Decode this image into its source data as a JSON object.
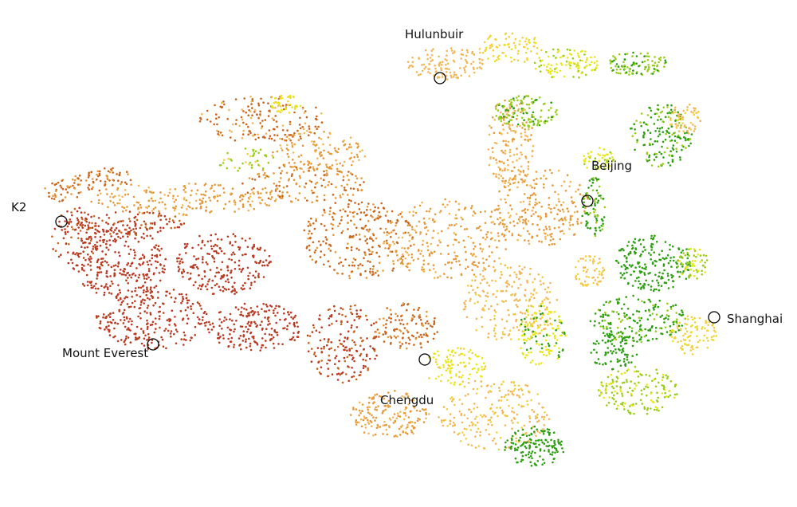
{
  "palette": {
    "high_altitude": "#b83a22",
    "upper_mid": "#c8661f",
    "mid": "#e39a3c",
    "plateau": "#f0b85a",
    "lower_mid": "#f2d040",
    "lowland_yellow": "#e8e818",
    "lowland_lime": "#9acd1a",
    "lowland_green": "#2e9e12"
  },
  "places": [
    {
      "id": "hulunbuir",
      "name": "Hulunbuir",
      "marker_color": "#000000"
    },
    {
      "id": "beijing",
      "name": "Beijing",
      "marker_color": "#000000"
    },
    {
      "id": "k2",
      "name": "K2",
      "marker_color": "#000000"
    },
    {
      "id": "shanghai",
      "name": "Shanghai",
      "marker_color": "#000000"
    },
    {
      "id": "everest",
      "name": "Mount Everest",
      "marker_color": "#000000"
    },
    {
      "id": "chengdu",
      "name": "Chengdu",
      "marker_color": "#000000"
    }
  ]
}
